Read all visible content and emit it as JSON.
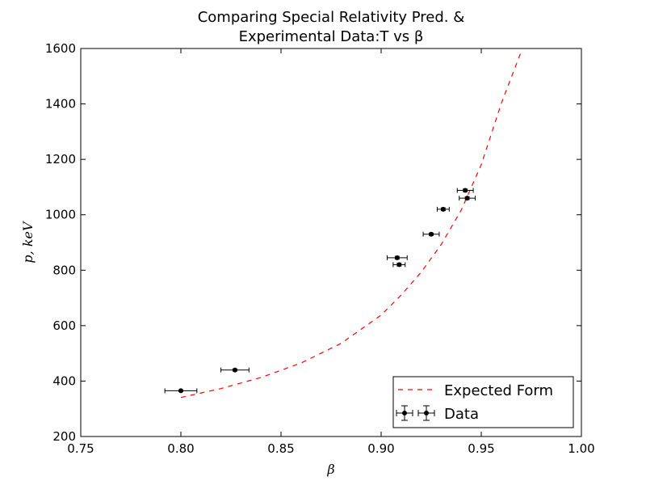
{
  "chart_data": {
    "type": "scatter",
    "title_line1": "Comparing Special Relativity Pred. &",
    "title_line2": "Experimental Data:T vs β",
    "xlabel": "β",
    "ylabel": "p, keV",
    "xlim": [
      0.75,
      1.0
    ],
    "ylim": [
      200,
      1600
    ],
    "x_ticks": [
      "0.75",
      "0.80",
      "0.85",
      "0.90",
      "0.95",
      "1.00"
    ],
    "y_ticks": [
      "200",
      "400",
      "600",
      "800",
      "1000",
      "1200",
      "1400",
      "1600"
    ],
    "grid": false,
    "legend_position": "lower-right",
    "series": [
      {
        "name": "Data",
        "style": "errorbar",
        "color": "#000000",
        "points": [
          {
            "x": 0.8,
            "y": 365,
            "xerr": 0.008,
            "yerr": 3
          },
          {
            "x": 0.827,
            "y": 440,
            "xerr": 0.007,
            "yerr": 4
          },
          {
            "x": 0.908,
            "y": 845,
            "xerr": 0.005,
            "yerr": 5
          },
          {
            "x": 0.909,
            "y": 820,
            "xerr": 0.003,
            "yerr": 5
          },
          {
            "x": 0.925,
            "y": 930,
            "xerr": 0.004,
            "yerr": 4
          },
          {
            "x": 0.931,
            "y": 1020,
            "xerr": 0.003,
            "yerr": 5
          },
          {
            "x": 0.942,
            "y": 1088,
            "xerr": 0.004,
            "yerr": 5
          },
          {
            "x": 0.943,
            "y": 1060,
            "xerr": 0.004,
            "yerr": 5
          }
        ]
      },
      {
        "name": "Expected Form",
        "style": "dashed-line",
        "color": "#ff0000",
        "points": [
          {
            "x": 0.8,
            "y": 341
          },
          {
            "x": 0.82,
            "y": 373
          },
          {
            "x": 0.84,
            "y": 413
          },
          {
            "x": 0.86,
            "y": 465
          },
          {
            "x": 0.88,
            "y": 536
          },
          {
            "x": 0.9,
            "y": 638
          },
          {
            "x": 0.91,
            "y": 710
          },
          {
            "x": 0.92,
            "y": 793
          },
          {
            "x": 0.93,
            "y": 893
          },
          {
            "x": 0.94,
            "y": 1017
          },
          {
            "x": 0.95,
            "y": 1181
          },
          {
            "x": 0.96,
            "y": 1402
          },
          {
            "x": 0.97,
            "y": 1590
          }
        ]
      }
    ]
  }
}
